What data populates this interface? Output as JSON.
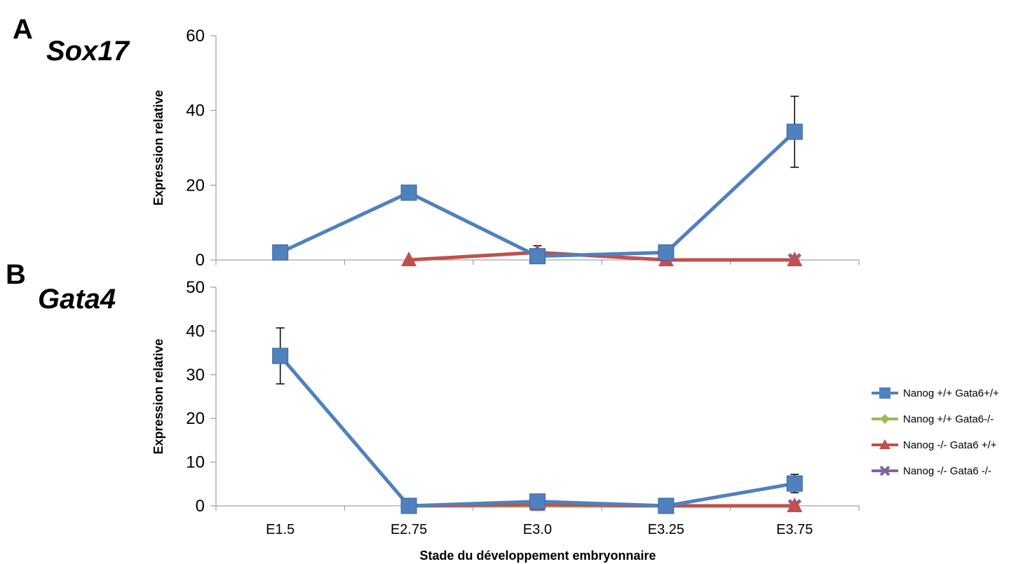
{
  "panels": [
    {
      "letter": "A",
      "gene": "Sox17"
    },
    {
      "letter": "B",
      "gene": "Gata4"
    }
  ],
  "xlabel": "Stade du développement embryonnaire",
  "ylabel": "Expression relative",
  "chart_data": [
    {
      "type": "line",
      "title": "Sox17",
      "ylabel": "Expression relative",
      "xlabel": "",
      "ylim": [
        0,
        60
      ],
      "yticks": [
        0,
        20,
        40,
        60
      ],
      "categories": [
        "E1.5",
        "E2.75",
        "E3.0",
        "E3.25",
        "E3.75"
      ],
      "show_x_tick_labels": false,
      "series": [
        {
          "name": "Nanog +/+ Gata6+/+",
          "color": "#4F81BD",
          "marker": "square",
          "values": [
            2,
            18,
            1,
            2,
            34.3
          ],
          "errors": [
            null,
            null,
            null,
            null,
            9.5
          ]
        },
        {
          "name": "Nanog +/+ Gata6-/-",
          "color": "#9BBB59",
          "marker": "diamond",
          "values": [
            null,
            null,
            null,
            0,
            0
          ],
          "errors": [
            null,
            null,
            null,
            null,
            null
          ]
        },
        {
          "name": "Nanog -/- Gata6 +/+",
          "color": "#C0504D",
          "marker": "triangle",
          "values": [
            null,
            0,
            2,
            0,
            0
          ],
          "errors": [
            null,
            null,
            1.8,
            null,
            null
          ]
        },
        {
          "name": "Nanog -/- Gata6 -/-",
          "color": "#8064A2",
          "marker": "x",
          "values": [
            null,
            null,
            null,
            0,
            0
          ],
          "errors": [
            null,
            null,
            null,
            null,
            null
          ]
        }
      ]
    },
    {
      "type": "line",
      "title": "Gata4",
      "ylabel": "Expression relative",
      "xlabel": "Stade du développement embryonnaire",
      "ylim": [
        0,
        50
      ],
      "yticks": [
        0,
        10,
        20,
        30,
        40,
        50
      ],
      "categories": [
        "E1.5",
        "E2.75",
        "E3.0",
        "E3.25",
        "E3.75"
      ],
      "show_x_tick_labels": true,
      "legend_position": "right",
      "series": [
        {
          "name": "Nanog +/+ Gata6+/+",
          "color": "#4F81BD",
          "marker": "square",
          "values": [
            34.3,
            0,
            1,
            0,
            5.1
          ],
          "errors": [
            6.4,
            null,
            null,
            null,
            2.1
          ]
        },
        {
          "name": "Nanog +/+ Gata6-/-",
          "color": "#9BBB59",
          "marker": "diamond",
          "values": [
            null,
            0,
            0,
            0,
            0
          ],
          "errors": [
            null,
            null,
            null,
            null,
            null
          ]
        },
        {
          "name": "Nanog -/- Gata6 +/+",
          "color": "#C0504D",
          "marker": "triangle",
          "values": [
            null,
            0,
            0.3,
            0,
            0
          ],
          "errors": [
            null,
            null,
            null,
            null,
            null
          ]
        },
        {
          "name": "Nanog -/- Gata6 -/-",
          "color": "#8064A2",
          "marker": "x",
          "values": [
            null,
            null,
            null,
            0,
            0
          ],
          "errors": [
            null,
            null,
            null,
            null,
            null
          ]
        }
      ]
    }
  ]
}
